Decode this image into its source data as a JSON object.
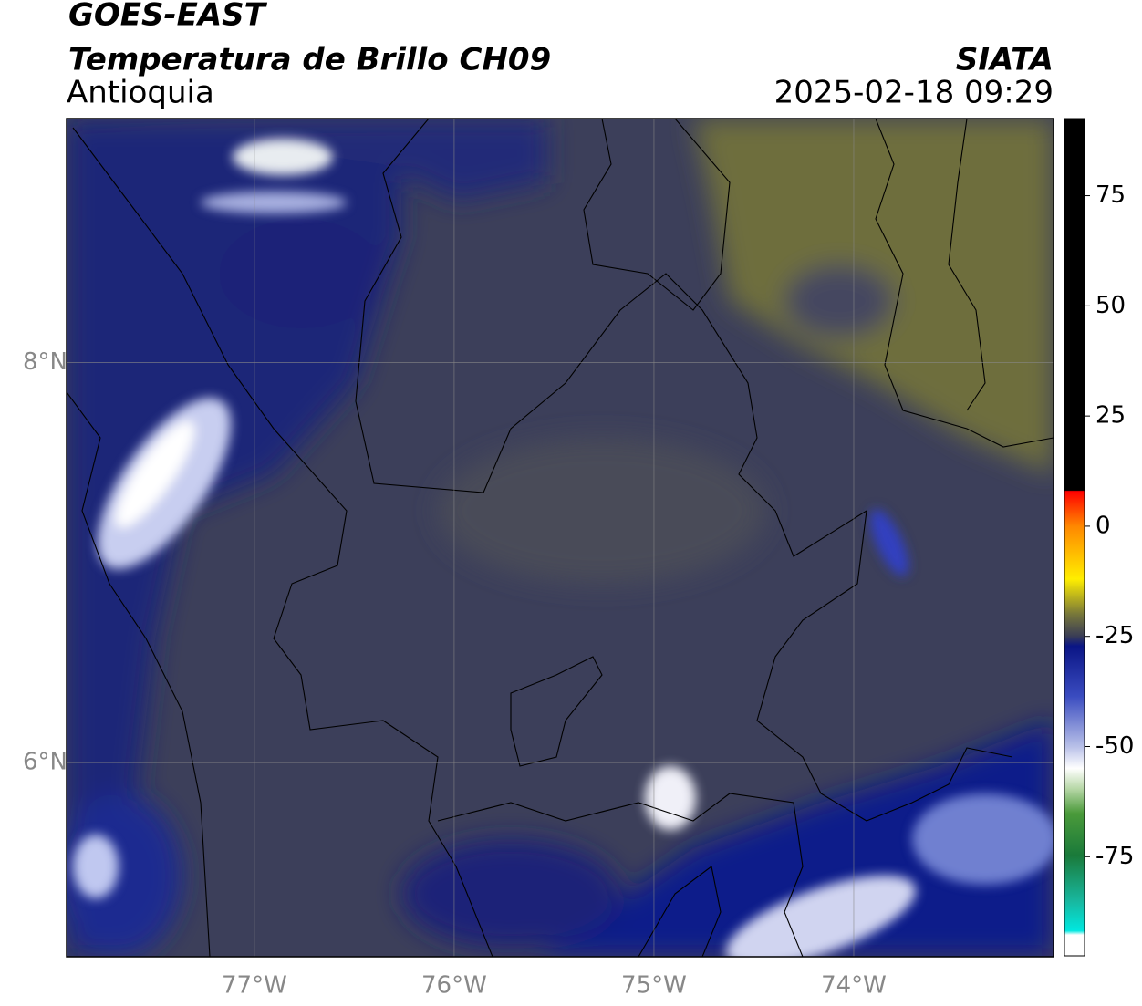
{
  "header": {
    "satellite": "GOES-EAST",
    "product": "Temperatura de Brillo CH09",
    "region": "Antioquia",
    "agency": "SIATA",
    "datetime": "2025-02-18 09:29"
  },
  "map": {
    "lon_range": [
      -77.94,
      -73.0
    ],
    "lat_range": [
      5.03,
      9.22
    ],
    "lon_ticks": [
      {
        "value": -77,
        "label": "77°W"
      },
      {
        "value": -76,
        "label": "76°W"
      },
      {
        "value": -75,
        "label": "75°W"
      },
      {
        "value": -74,
        "label": "74°W"
      }
    ],
    "lat_ticks": [
      {
        "value": 8,
        "label": "8°N"
      },
      {
        "value": 6,
        "label": "6°N"
      }
    ],
    "grid": true
  },
  "colorbar": {
    "lim": [
      -97.5,
      92.5
    ],
    "ticks": [
      75,
      50,
      25,
      0,
      -25,
      -50,
      -75
    ]
  }
}
